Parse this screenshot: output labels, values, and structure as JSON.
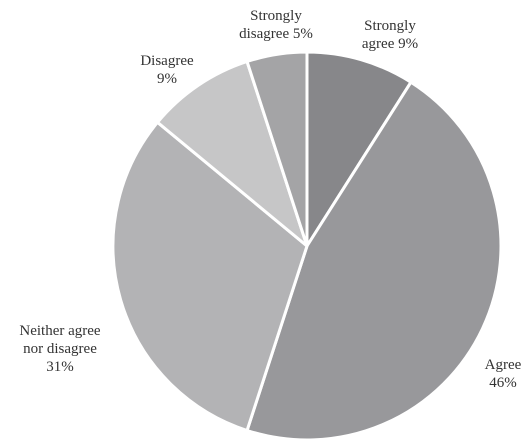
{
  "chart_data": {
    "type": "pie",
    "start_angle_deg": 0,
    "direction": "clockwise",
    "slices": [
      {
        "label_lines": [
          "Strongly",
          "agree 9%"
        ],
        "category": "Strongly agree",
        "value": 9,
        "color": "#87878a"
      },
      {
        "label_lines": [
          "Agree",
          "46%"
        ],
        "category": "Agree",
        "value": 46,
        "color": "#98989b"
      },
      {
        "label_lines": [
          "Neither agree",
          "nor disagree",
          "31%"
        ],
        "category": "Neither agree nor disagree",
        "value": 31,
        "color": "#b3b3b5"
      },
      {
        "label_lines": [
          "Disagree",
          "9%"
        ],
        "category": "Disagree",
        "value": 9,
        "color": "#c6c6c7"
      },
      {
        "label_lines": [
          "Strongly",
          "disagree 5%"
        ],
        "category": "Strongly disagree",
        "value": 5,
        "color": "#a4a4a6"
      }
    ]
  }
}
